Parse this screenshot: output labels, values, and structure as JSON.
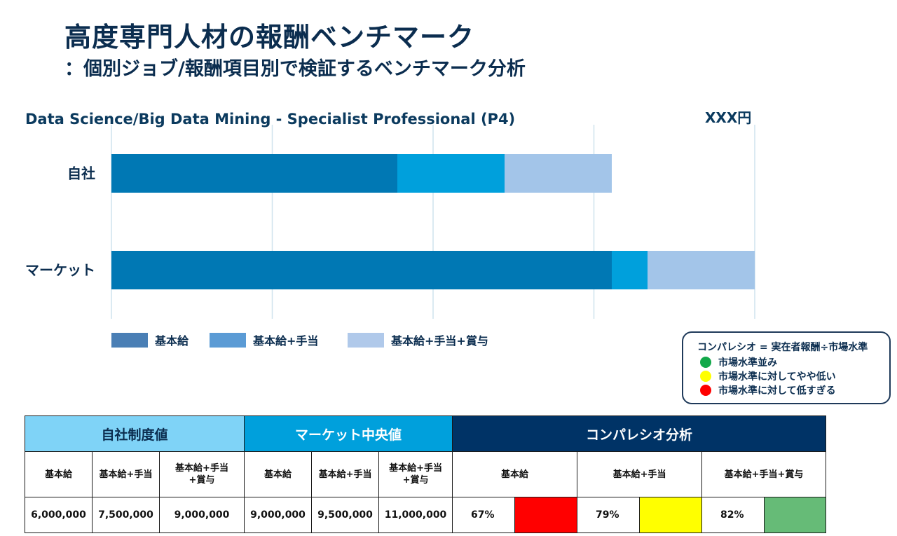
{
  "header": {
    "title": "高度専門人材の報酬ベンチマーク",
    "subtitle": "：個別ジョブ/報酬項目別で検証するベンチマーク分析"
  },
  "chart_data": {
    "type": "bar",
    "orientation": "horizontal",
    "stacked": false,
    "overlay": true,
    "title": "Data Science/Big Data Mining - Specialist Professional (P4)",
    "unit_label": "XXX円",
    "categories": [
      "自社",
      "マーケット"
    ],
    "series": [
      {
        "name": "基本給",
        "values": [
          6000000,
          9000000
        ],
        "color": "#0078b4"
      },
      {
        "name": "基本給+手当",
        "values": [
          7500000,
          9500000
        ],
        "color": "#00a0dc"
      },
      {
        "name": "基本給+手当+賞与",
        "values": [
          9000000,
          11000000
        ],
        "color": "#a3c5e9"
      }
    ],
    "xlim": [
      2000000,
      11000000
    ],
    "grid": true,
    "legend_position": "bottom-left"
  },
  "legend": {
    "items": [
      {
        "label": "基本給",
        "color": "#4a7fb5"
      },
      {
        "label": "基本給+手当",
        "color": "#5b9bd5"
      },
      {
        "label": "基本給+手当+賞与",
        "color": "#b0c9ea"
      }
    ]
  },
  "key": {
    "formula": "コンパレシオ = 実在者報酬÷市場水準",
    "items": [
      {
        "label": "市場水準並み",
        "color": "#12a84a"
      },
      {
        "label": "市場水準に対してやや低い",
        "color": "#ffff00"
      },
      {
        "label": "市場水準に対して低すぎる",
        "color": "#ff0000"
      }
    ]
  },
  "table": {
    "groups": {
      "own": "自社制度値",
      "market": "マーケット中央値",
      "compa": "コンパレシオ分析"
    },
    "sub": {
      "base": "基本給",
      "base_allow": "基本給+手当",
      "base_allow_bonus_1": "基本給+手当",
      "base_allow_bonus_2": "+賞与",
      "compa_base": "基本給",
      "compa_allow": "基本給+手当",
      "compa_total": "基本給+手当+賞与"
    },
    "own_values": [
      "6,000,000",
      "7,500,000",
      "9,000,000"
    ],
    "market_values": [
      "9,000,000",
      "9,500,000",
      "11,000,000"
    ],
    "ratios": [
      {
        "value": "67%",
        "color": "#ff0000"
      },
      {
        "value": "79%",
        "color": "#ffff00"
      },
      {
        "value": "82%",
        "color": "#66bb77"
      }
    ]
  }
}
